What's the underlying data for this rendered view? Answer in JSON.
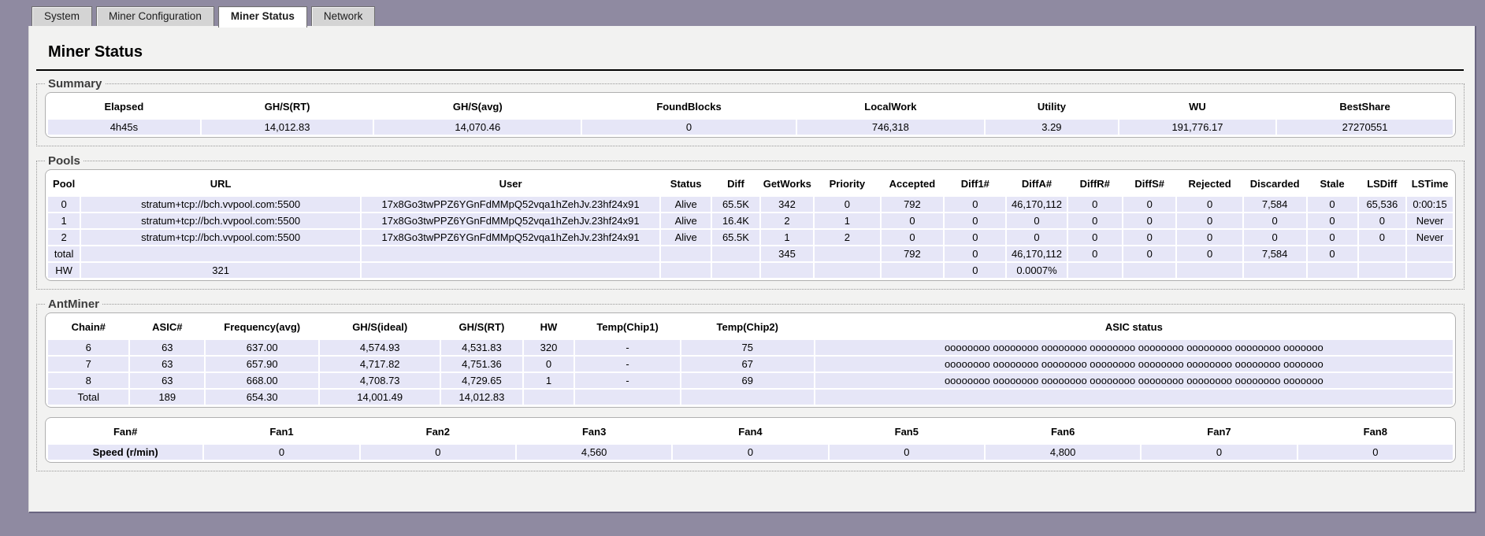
{
  "active_tab_index": 2,
  "tabs": [
    "System",
    "Miner Configuration",
    "Miner Status",
    "Network"
  ],
  "page_title": "Miner Status",
  "summary": {
    "legend": "Summary",
    "headers": [
      "Elapsed",
      "GH/S(RT)",
      "GH/S(avg)",
      "FoundBlocks",
      "LocalWork",
      "Utility",
      "WU",
      "BestShare"
    ],
    "rows": [
      [
        "4h45s",
        "14,012.83",
        "14,070.46",
        "0",
        "746,318",
        "3.29",
        "191,776.17",
        "27270551"
      ]
    ]
  },
  "pools": {
    "legend": "Pools",
    "headers": [
      "Pool",
      "URL",
      "User",
      "Status",
      "Diff",
      "GetWorks",
      "Priority",
      "Accepted",
      "Diff1#",
      "DiffA#",
      "DiffR#",
      "DiffS#",
      "Rejected",
      "Discarded",
      "Stale",
      "LSDiff",
      "LSTime"
    ],
    "rows": [
      [
        "0",
        "stratum+tcp://bch.vvpool.com:5500",
        "17x8Go3twPPZ6YGnFdMMpQ52vqa1hZehJv.23hf24x91",
        "Alive",
        "65.5K",
        "342",
        "0",
        "792",
        "0",
        "46,170,112",
        "0",
        "0",
        "0",
        "7,584",
        "0",
        "65,536",
        "0:00:15"
      ],
      [
        "1",
        "stratum+tcp://bch.vvpool.com:5500",
        "17x8Go3twPPZ6YGnFdMMpQ52vqa1hZehJv.23hf24x91",
        "Alive",
        "16.4K",
        "2",
        "1",
        "0",
        "0",
        "0",
        "0",
        "0",
        "0",
        "0",
        "0",
        "0",
        "Never"
      ],
      [
        "2",
        "stratum+tcp://bch.vvpool.com:5500",
        "17x8Go3twPPZ6YGnFdMMpQ52vqa1hZehJv.23hf24x91",
        "Alive",
        "65.5K",
        "1",
        "2",
        "0",
        "0",
        "0",
        "0",
        "0",
        "0",
        "0",
        "0",
        "0",
        "Never"
      ],
      [
        "total",
        "",
        "",
        "",
        "",
        "345",
        "",
        "792",
        "0",
        "46,170,112",
        "0",
        "0",
        "0",
        "7,584",
        "0",
        "",
        ""
      ],
      [
        "HW",
        "321",
        "",
        "",
        "",
        "",
        "",
        "",
        "0",
        "0.0007%",
        "",
        "",
        "",
        "",
        "",
        "",
        ""
      ]
    ]
  },
  "antminer": {
    "legend": "AntMiner",
    "chains": {
      "headers": [
        "Chain#",
        "ASIC#",
        "Frequency(avg)",
        "GH/S(ideal)",
        "GH/S(RT)",
        "HW",
        "Temp(Chip1)",
        "Temp(Chip2)",
        "ASIC status"
      ],
      "rows": [
        [
          "6",
          "63",
          "637.00",
          "4,574.93",
          "4,531.83",
          "320",
          "-",
          "75",
          "oooooooo oooooooo oooooooo oooooooo oooooooo oooooooo oooooooo ooooooo"
        ],
        [
          "7",
          "63",
          "657.90",
          "4,717.82",
          "4,751.36",
          "0",
          "-",
          "67",
          "oooooooo oooooooo oooooooo oooooooo oooooooo oooooooo oooooooo ooooooo"
        ],
        [
          "8",
          "63",
          "668.00",
          "4,708.73",
          "4,729.65",
          "1",
          "-",
          "69",
          "oooooooo oooooooo oooooooo oooooooo oooooooo oooooooo oooooooo ooooooo"
        ],
        [
          "Total",
          "189",
          "654.30",
          "14,001.49",
          "14,012.83",
          "",
          "",
          "",
          ""
        ]
      ]
    },
    "fans": {
      "headers": [
        "Fan#",
        "Fan1",
        "Fan2",
        "Fan3",
        "Fan4",
        "Fan5",
        "Fan6",
        "Fan7",
        "Fan8"
      ],
      "rows": [
        [
          "Speed (r/min)",
          "0",
          "0",
          "4,560",
          "0",
          "0",
          "4,800",
          "0",
          "0"
        ]
      ]
    }
  }
}
